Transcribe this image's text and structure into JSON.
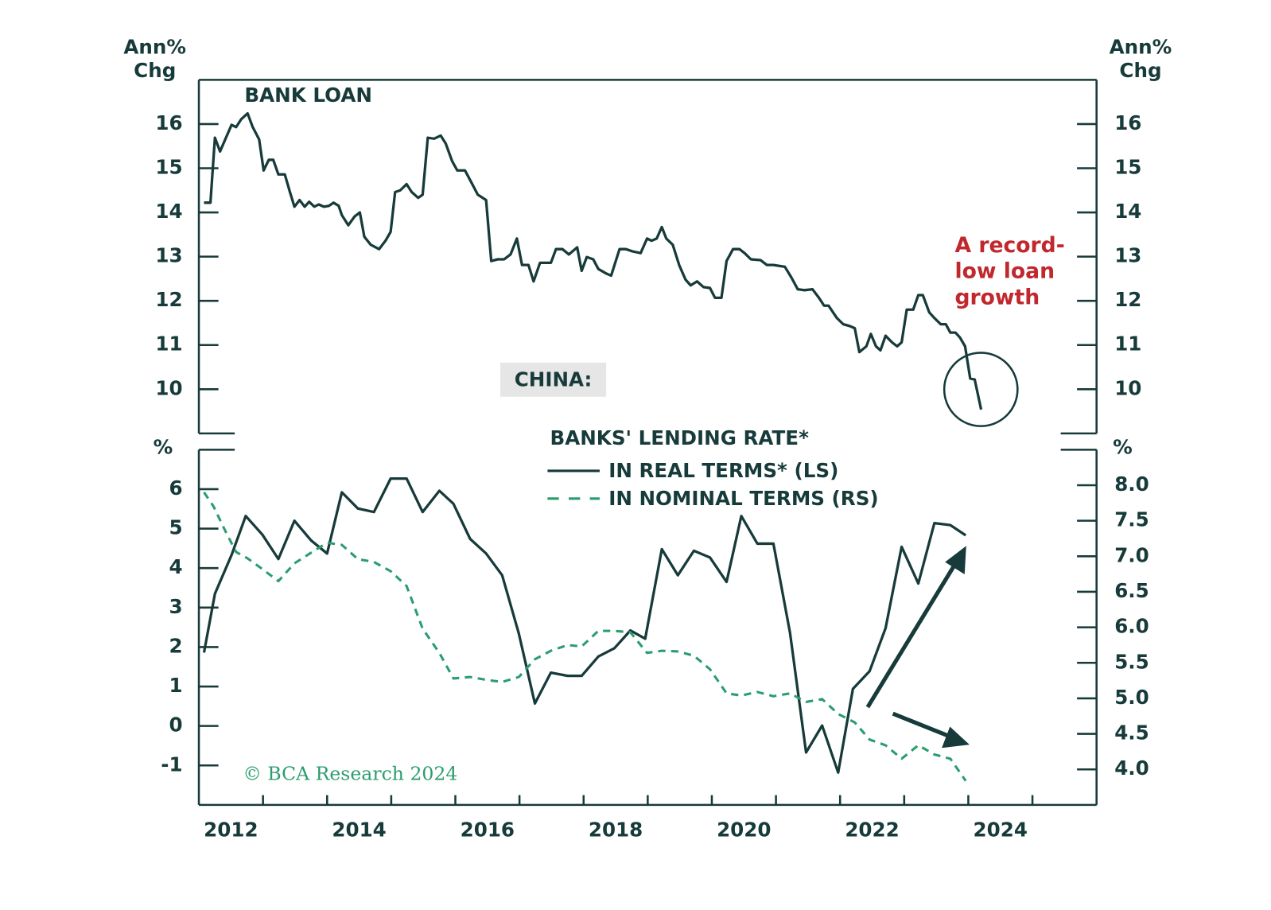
{
  "title": "CHINA:",
  "chart_data": [
    {
      "type": "line",
      "title": "BANK LOAN",
      "ylabel": [
        "Ann%",
        "Chg"
      ],
      "y2label": [
        "Ann%",
        "Chg"
      ],
      "annotation": [
        "A record-",
        "low loan",
        "growth"
      ],
      "xlim": [
        2012,
        2026
      ],
      "ylim": [
        9,
        17
      ],
      "yticks": [
        10,
        11,
        12,
        13,
        14,
        15,
        16
      ],
      "y2lim": [
        9,
        17
      ],
      "y2ticks": [
        10,
        11,
        12,
        13,
        14,
        15,
        16
      ],
      "series": [
        {
          "color": "#173b3a",
          "style": "solid",
          "x": [
            2012.08,
            2012.18,
            2012.25,
            2012.33,
            2012.41,
            2012.51,
            2012.58,
            2012.66,
            2012.76,
            2012.84,
            2012.94,
            2013.01,
            2013.09,
            2013.16,
            2013.24,
            2013.34,
            2013.42,
            2013.49,
            2013.57,
            2013.65,
            2013.72,
            2013.8,
            2013.87,
            2013.95,
            2014.03,
            2014.1,
            2014.18,
            2014.23,
            2014.33,
            2014.43,
            2014.51,
            2014.58,
            2014.68,
            2014.81,
            2014.91,
            2014.99,
            2015.06,
            2015.14,
            2015.24,
            2015.32,
            2015.42,
            2015.49,
            2015.57,
            2015.67,
            2015.77,
            2015.85,
            2015.95,
            2016.03,
            2016.15,
            2016.25,
            2016.35,
            2016.48,
            2016.56,
            2016.66,
            2016.76,
            2016.86,
            2016.96,
            2017.04,
            2017.14,
            2017.22,
            2017.32,
            2017.39,
            2017.49,
            2017.57,
            2017.67,
            2017.77,
            2017.9,
            2017.97,
            2018.05,
            2018.15,
            2018.23,
            2018.35,
            2018.43,
            2018.56,
            2018.66,
            2018.76,
            2018.89,
            2018.99,
            2019.06,
            2019.14,
            2019.22,
            2019.29,
            2019.39,
            2019.49,
            2019.59,
            2019.67,
            2019.77,
            2019.87,
            2019.97,
            2020.05,
            2020.15,
            2020.23,
            2020.33,
            2020.43,
            2020.51,
            2020.61,
            2020.76,
            2020.86,
            2020.96,
            2021.14,
            2021.24,
            2021.34,
            2021.44,
            2021.57,
            2021.67,
            2021.75,
            2021.82,
            2021.95,
            2022.05,
            2022.15,
            2022.23,
            2022.3,
            2022.41,
            2022.48,
            2022.56,
            2022.63,
            2022.71,
            2022.81,
            2022.89,
            2022.96,
            2023.04,
            2023.14,
            2023.22,
            2023.29,
            2023.39,
            2023.47,
            2023.57,
            2023.65,
            2023.72,
            2023.8,
            2023.87,
            2023.95,
            2024.03,
            2024.1,
            2024.2
          ],
          "values": [
            14.22,
            14.22,
            15.69,
            15.38,
            15.65,
            15.98,
            15.93,
            16.11,
            16.24,
            15.93,
            15.65,
            14.95,
            15.19,
            15.19,
            14.86,
            14.86,
            14.46,
            14.13,
            14.28,
            14.13,
            14.24,
            14.13,
            14.18,
            14.13,
            14.15,
            14.22,
            14.15,
            13.94,
            13.71,
            13.91,
            14.0,
            13.45,
            13.27,
            13.17,
            13.36,
            13.56,
            14.46,
            14.5,
            14.64,
            14.46,
            14.33,
            14.4,
            15.69,
            15.67,
            15.74,
            15.56,
            15.16,
            14.95,
            14.95,
            14.68,
            14.4,
            14.28,
            12.9,
            12.94,
            12.94,
            13.05,
            13.41,
            12.81,
            12.81,
            12.44,
            12.86,
            12.86,
            12.86,
            13.17,
            13.17,
            13.05,
            13.21,
            12.68,
            12.99,
            12.94,
            12.72,
            12.62,
            12.57,
            13.17,
            13.17,
            13.12,
            13.08,
            13.41,
            13.36,
            13.41,
            13.67,
            13.41,
            13.27,
            12.81,
            12.48,
            12.35,
            12.44,
            12.31,
            12.29,
            12.07,
            12.07,
            12.9,
            13.17,
            13.17,
            13.08,
            12.94,
            12.92,
            12.81,
            12.81,
            12.77,
            12.53,
            12.26,
            12.24,
            12.26,
            12.07,
            11.89,
            11.89,
            11.61,
            11.47,
            11.43,
            11.38,
            10.84,
            10.97,
            11.25,
            10.97,
            10.88,
            11.21,
            11.06,
            10.97,
            11.06,
            11.8,
            11.8,
            12.13,
            12.13,
            11.74,
            11.61,
            11.47,
            11.47,
            11.28,
            11.28,
            11.17,
            10.97,
            10.24,
            10.22,
            9.54
          ]
        }
      ]
    },
    {
      "type": "line",
      "ylabel": "%",
      "y2label": "%",
      "legend_title": "BANKS' LENDING RATE*",
      "source": "© BCA Research 2024",
      "xlim": [
        2012,
        2026
      ],
      "xticks": [
        {
          "value": 2012.5,
          "label": "2012"
        },
        {
          "value": 2014.5,
          "label": "2014"
        },
        {
          "value": 2016.5,
          "label": "2016"
        },
        {
          "value": 2018.5,
          "label": "2018"
        },
        {
          "value": 2020.5,
          "label": "2020"
        },
        {
          "value": 2022.5,
          "label": "2022"
        },
        {
          "value": 2024.5,
          "label": "2024"
        }
      ],
      "x_tick_marks": [
        2013,
        2014,
        2015,
        2016,
        2017,
        2018,
        2019,
        2020,
        2021,
        2022,
        2023,
        2024,
        2025
      ],
      "ylim": [
        -2,
        7
      ],
      "yticks": [
        -1,
        0,
        1,
        2,
        3,
        4,
        5,
        6
      ],
      "y2lim": [
        3.5,
        8.5
      ],
      "y2ticks": [
        {
          "value": 4,
          "label": "4.0"
        },
        4.5,
        {
          "value": 5,
          "label": "5.0"
        },
        5.5,
        {
          "value": 6,
          "label": "6.0"
        },
        6.5,
        {
          "value": 7,
          "label": "7.0"
        },
        7.5,
        {
          "value": 8,
          "label": "8.0"
        }
      ],
      "series": [
        {
          "name": "IN REAL TERMS* (LS)",
          "color": "#173b3a",
          "style": "solid",
          "x": [
            2012.08,
            2012.25,
            2012.51,
            2012.73,
            2012.99,
            2013.24,
            2013.49,
            2013.75,
            2014.0,
            2014.23,
            2014.48,
            2014.73,
            2014.99,
            2015.24,
            2015.49,
            2015.75,
            2015.97,
            2016.23,
            2016.48,
            2016.73,
            2016.99,
            2017.24,
            2017.49,
            2017.75,
            2017.97,
            2018.23,
            2018.48,
            2018.73,
            2018.96,
            2019.22,
            2019.47,
            2019.72,
            2019.97,
            2020.23,
            2020.46,
            2020.71,
            2020.96,
            2021.22,
            2021.47,
            2021.72,
            2021.97,
            2022.2,
            2022.46,
            2022.71,
            2022.96,
            2023.22,
            2023.47,
            2023.72,
            2023.96
          ],
          "values": [
            1.86,
            3.35,
            4.33,
            5.32,
            4.85,
            4.23,
            5.2,
            4.7,
            4.37,
            5.92,
            5.51,
            5.42,
            6.27,
            6.27,
            5.42,
            5.96,
            5.63,
            4.74,
            4.37,
            3.82,
            2.34,
            0.57,
            1.35,
            1.27,
            1.27,
            1.76,
            1.97,
            2.42,
            2.21,
            4.48,
            3.82,
            4.44,
            4.27,
            3.65,
            5.32,
            4.62,
            4.62,
            2.36,
            -0.67,
            0.01,
            -1.18,
            0.94,
            1.39,
            2.48,
            4.54,
            3.61,
            5.14,
            5.09,
            4.83
          ]
        },
        {
          "name": "IN NOMINAL TERMS (RS)",
          "color": "#2a9d6f",
          "style": "dashed",
          "axis": "y2",
          "x": [
            2012.08,
            2012.23,
            2012.41,
            2012.58,
            2012.76,
            2012.99,
            2013.24,
            2013.49,
            2013.75,
            2014.0,
            2014.23,
            2014.48,
            2014.73,
            2014.99,
            2015.24,
            2015.49,
            2015.75,
            2015.97,
            2016.23,
            2016.48,
            2016.73,
            2016.99,
            2017.24,
            2017.49,
            2017.75,
            2017.97,
            2018.23,
            2018.48,
            2018.73,
            2018.99,
            2019.22,
            2019.47,
            2019.72,
            2019.97,
            2020.23,
            2020.46,
            2020.71,
            2020.96,
            2021.22,
            2021.47,
            2021.72,
            2021.97,
            2022.23,
            2022.46,
            2022.71,
            2022.96,
            2023.22,
            2023.47,
            2023.72,
            2023.96
          ],
          "values": [
            7.9,
            7.7,
            7.36,
            7.06,
            6.97,
            6.82,
            6.65,
            6.9,
            7.05,
            7.19,
            7.16,
            6.96,
            6.92,
            6.79,
            6.58,
            5.98,
            5.64,
            5.28,
            5.3,
            5.26,
            5.23,
            5.3,
            5.55,
            5.67,
            5.75,
            5.73,
            5.95,
            5.95,
            5.93,
            5.64,
            5.67,
            5.66,
            5.6,
            5.41,
            5.07,
            5.04,
            5.09,
            5.03,
            5.07,
            4.95,
            4.99,
            4.78,
            4.66,
            4.42,
            4.34,
            4.15,
            4.34,
            4.21,
            4.15,
            3.84
          ]
        }
      ]
    }
  ]
}
